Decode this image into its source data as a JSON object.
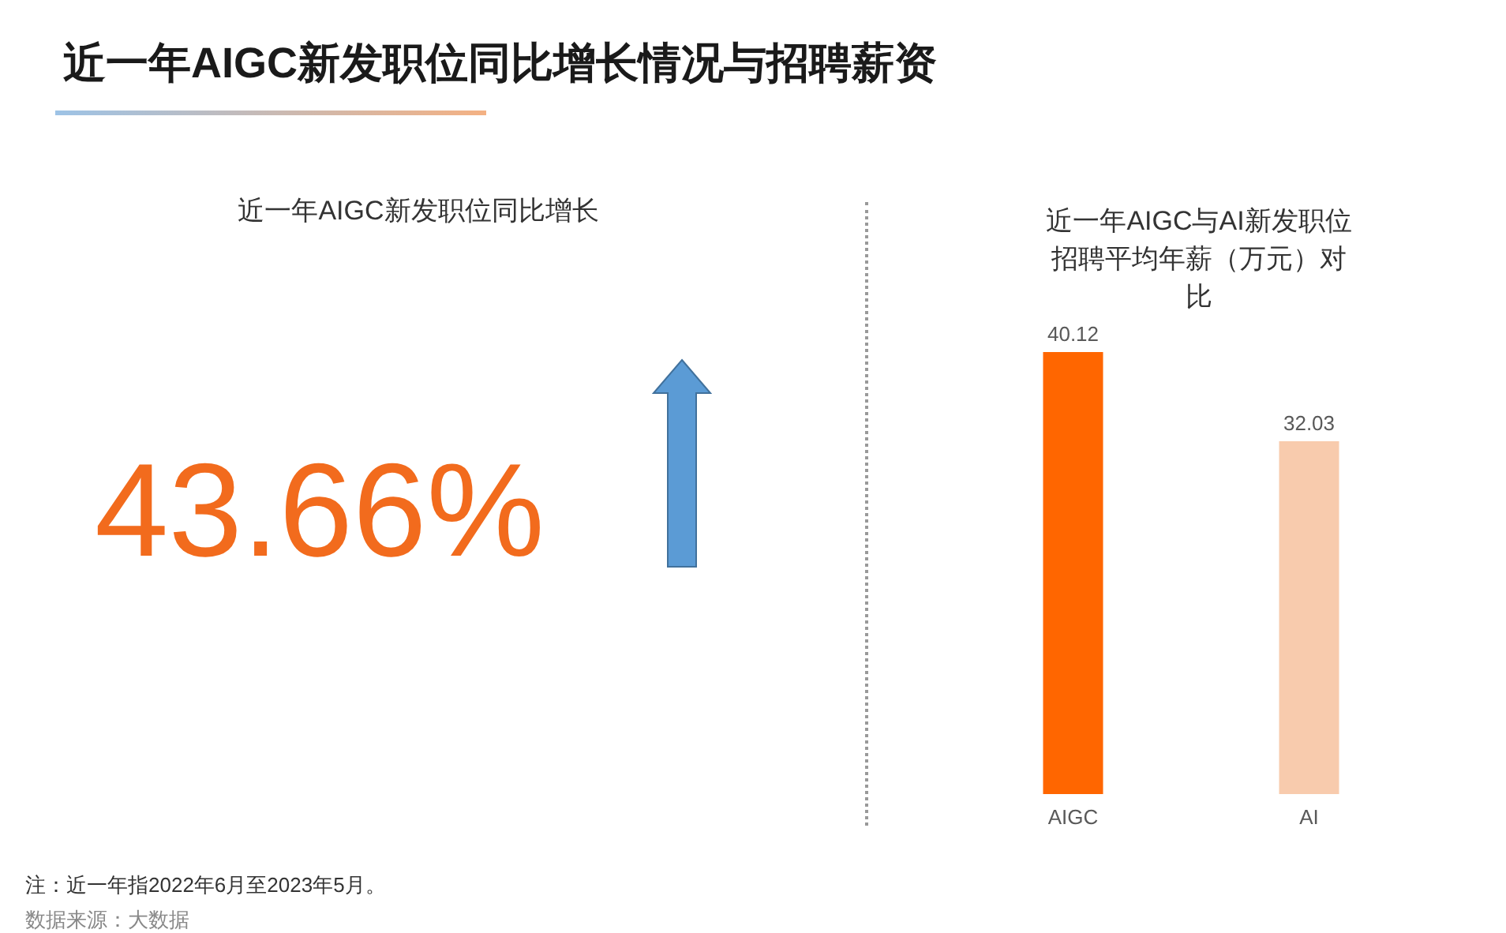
{
  "chart_data": [
    {
      "type": "other",
      "title": "近一年AIGC新发职位同比增长情况与招聘薪资",
      "subtitle": "近一年AIGC新发职位同比增长",
      "annotations": [
        "43.66%",
        "注：近一年指2022年6月至2023年5月。",
        "数据来源：大数据"
      ]
    },
    {
      "type": "bar",
      "title": "近一年AIGC与AI新发职位招聘平均年薪（万元）对比",
      "categories": [
        "AIGC",
        "AI"
      ],
      "values": [
        40.12,
        32.03
      ],
      "colors": [
        "#ff6600",
        "#f8cbad"
      ],
      "data_labels": true
    }
  ]
}
